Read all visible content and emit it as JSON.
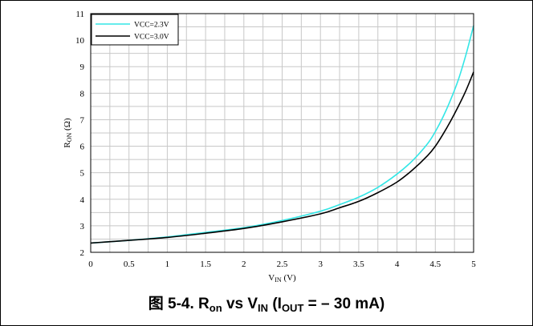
{
  "chart_data": {
    "type": "line",
    "xlabel": {
      "main": "V",
      "sub": "IN",
      "unit": " (V)"
    },
    "ylabel": {
      "main": "R",
      "sub": "ON",
      "unit": " (Ω)"
    },
    "xlim": [
      0,
      5
    ],
    "ylim": [
      2,
      11
    ],
    "xticks": [
      "0",
      "0.5",
      "1",
      "1.5",
      "2",
      "2.5",
      "3",
      "3.5",
      "4",
      "4.5",
      "5"
    ],
    "yticks": [
      "2",
      "3",
      "4",
      "5",
      "6",
      "7",
      "8",
      "9",
      "10",
      "11"
    ],
    "grid": true,
    "legend": "top-left",
    "series": [
      {
        "name": "VCC=2.3V",
        "color": "#33e6e6",
        "x": [
          0,
          0.5,
          1,
          1.5,
          2,
          2.5,
          3,
          3.25,
          3.5,
          3.75,
          4,
          4.2,
          4.4,
          4.5,
          4.6,
          4.7,
          4.8,
          4.9,
          5
        ],
        "y": [
          2.35,
          2.45,
          2.58,
          2.75,
          2.93,
          3.2,
          3.55,
          3.8,
          4.08,
          4.45,
          4.95,
          5.45,
          6.1,
          6.55,
          7.1,
          7.75,
          8.5,
          9.45,
          10.55
        ]
      },
      {
        "name": "VCC=3.0V",
        "color": "#000000",
        "x": [
          0,
          0.5,
          1,
          1.5,
          2,
          2.5,
          3,
          3.25,
          3.5,
          3.75,
          4,
          4.2,
          4.4,
          4.5,
          4.6,
          4.7,
          4.8,
          4.9,
          5
        ],
        "y": [
          2.35,
          2.45,
          2.56,
          2.72,
          2.9,
          3.15,
          3.45,
          3.68,
          3.92,
          4.25,
          4.65,
          5.1,
          5.65,
          6.0,
          6.45,
          6.95,
          7.5,
          8.1,
          8.8
        ]
      }
    ]
  },
  "caption": {
    "prefix": "图 5-4. R",
    "sub1": "on",
    "mid": " vs V",
    "sub2": "IN",
    "open": " (I",
    "sub3": "OUT",
    "suffix": " =  – 30 mA)"
  }
}
